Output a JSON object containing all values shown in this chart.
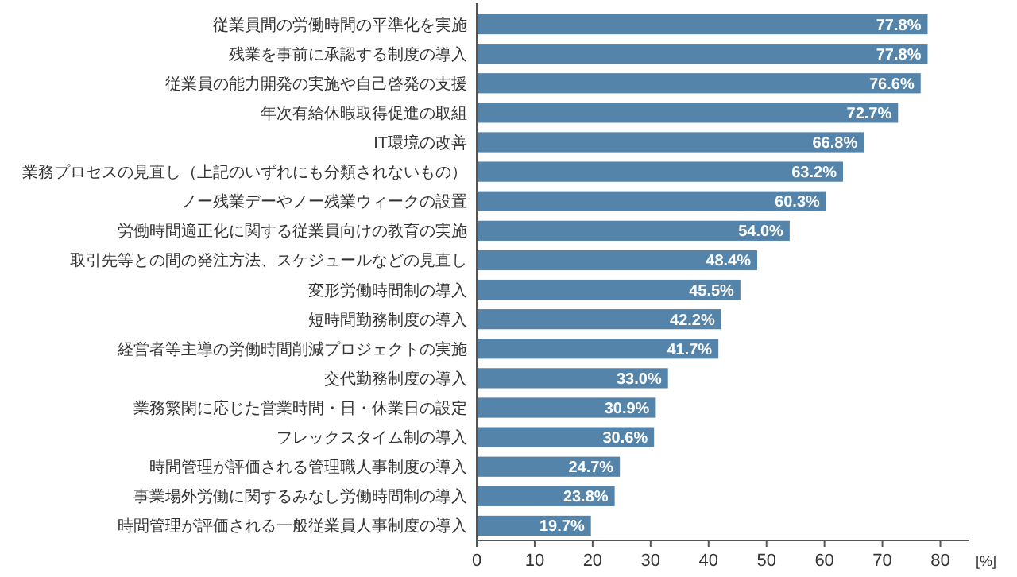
{
  "chart_data": {
    "type": "bar",
    "orientation": "horizontal",
    "xlabel": "[%]",
    "categories": [
      "従業員間の労働時間の平準化を実施",
      "残業を事前に承認する制度の導入",
      "従業員の能力開発の実施や自己啓発の支援",
      "年次有給休暇取得促進の取組",
      "IT環境の改善",
      "業務プロセスの見直し（上記のいずれにも分類されないもの）",
      "ノー残業デーやノー残業ウィークの設置",
      "労働時間適正化に関する従業員向けの教育の実施",
      "取引先等との間の発注方法、スケジュールなどの見直し",
      "変形労働時間制の導入",
      "短時間勤務制度の導入",
      "経営者等主導の労働時間削減プロジェクトの実施",
      "交代勤務制度の導入",
      "業務繁閑に応じた営業時間・日・休業日の設定",
      "フレックスタイム制の導入",
      "時間管理が評価される管理職人事制度の導入",
      "事業場外労働に関するみなし労働時間制の導入",
      "時間管理が評価される一般従業員人事制度の導入"
    ],
    "values": [
      77.8,
      77.8,
      76.6,
      72.7,
      66.8,
      63.2,
      60.3,
      54.0,
      48.4,
      45.5,
      42.2,
      41.7,
      33.0,
      30.9,
      30.6,
      24.7,
      23.8,
      19.7
    ],
    "value_labels": [
      "77.8%",
      "77.8%",
      "76.6%",
      "72.7%",
      "66.8%",
      "63.2%",
      "60.3%",
      "54.0%",
      "48.4%",
      "45.5%",
      "42.2%",
      "41.7%",
      "33.0%",
      "30.9%",
      "30.6%",
      "24.7%",
      "23.8%",
      "19.7%"
    ],
    "color": "#5484aa",
    "xlim": [
      0,
      85
    ],
    "xticks": [
      0,
      10,
      20,
      30,
      40,
      50,
      60,
      70,
      80
    ],
    "grid": false
  }
}
